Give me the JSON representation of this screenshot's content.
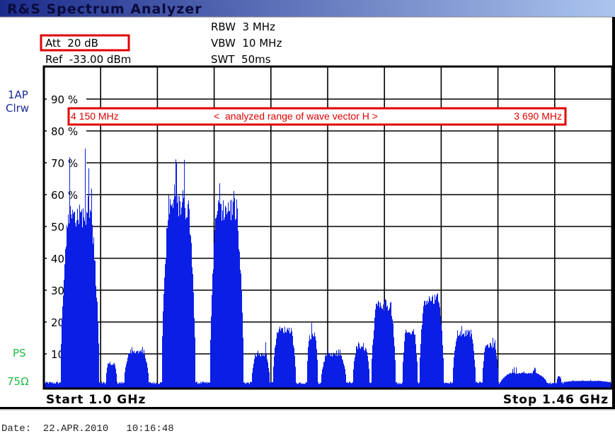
{
  "window": {
    "title": "R&S Spectrum Analyzer"
  },
  "settings": {
    "att": "Att  20 dB",
    "ref": "Ref  -33.00 dBm",
    "rbw": "RBW  3 MHz",
    "vbw": "VBW  10 MHz",
    "swt": "SWT  50ms"
  },
  "side_labels": {
    "trace": "1AP",
    "mode": "Clrw",
    "ps": "PS",
    "impedance": "75Ω"
  },
  "annotation": {
    "left": "4 150 MHz",
    "center": "<  analyzed range of wave vector H >",
    "right": "3 690 MHz"
  },
  "footer": {
    "date": "Date:  22.APR.2010   10:16:48"
  },
  "colors": {
    "trace": "#0a1ee6",
    "annotation": "#e00000",
    "title_bar_start": "#1c2c8c",
    "title_bar_end": "#aac6ee",
    "side_blue": "#1a2a9a",
    "side_green": "#22bb44"
  },
  "chart_data": {
    "type": "area",
    "start_label": "Start 1.0 GHz",
    "stop_label": "Stop 1.46 GHz",
    "xlim": [
      1.0,
      1.46
    ],
    "x_unit": "GHz",
    "ylim": [
      0,
      100
    ],
    "y_unit": "%",
    "grid": true,
    "x_divisions": 10,
    "y_ticks": [
      {
        "value": 90,
        "label": "90 %"
      },
      {
        "value": 80,
        "label": "80 %"
      },
      {
        "value": 70,
        "label": "70 %"
      },
      {
        "value": 60,
        "label": "60 %"
      },
      {
        "value": 50,
        "label": "50 %"
      },
      {
        "value": 40,
        "label": "40 %"
      },
      {
        "value": 30,
        "label": "30 %"
      },
      {
        "value": 20,
        "label": "20 %"
      },
      {
        "value": 10,
        "label": "10 %"
      }
    ],
    "noise_floor": 1,
    "channels": [
      {
        "start": 1.013,
        "stop": 1.045,
        "level": 55,
        "peak": 80
      },
      {
        "start": 1.05,
        "stop": 1.059,
        "level": 7,
        "peak": 8
      },
      {
        "start": 1.065,
        "stop": 1.085,
        "level": 11,
        "peak": 13
      },
      {
        "start": 1.095,
        "stop": 1.123,
        "level": 58,
        "peak": 72
      },
      {
        "start": 1.134,
        "stop": 1.162,
        "level": 57,
        "peak": 72
      },
      {
        "start": 1.168,
        "stop": 1.183,
        "level": 10,
        "peak": 14
      },
      {
        "start": 1.185,
        "stop": 1.204,
        "level": 18,
        "peak": 22
      },
      {
        "start": 1.213,
        "stop": 1.222,
        "level": 16,
        "peak": 20
      },
      {
        "start": 1.224,
        "stop": 1.245,
        "level": 10,
        "peak": 12
      },
      {
        "start": 1.25,
        "stop": 1.264,
        "level": 12,
        "peak": 14
      },
      {
        "start": 1.265,
        "stop": 1.285,
        "level": 26,
        "peak": 30
      },
      {
        "start": 1.29,
        "stop": 1.303,
        "level": 17,
        "peak": 21
      },
      {
        "start": 1.304,
        "stop": 1.324,
        "level": 28,
        "peak": 35
      },
      {
        "start": 1.331,
        "stop": 1.35,
        "level": 17,
        "peak": 20
      },
      {
        "start": 1.355,
        "stop": 1.368,
        "level": 13,
        "peak": 16
      },
      {
        "start": 1.37,
        "stop": 1.407,
        "level": 4,
        "peak": 6
      },
      {
        "start": 1.415,
        "stop": 1.419,
        "level": 3,
        "peak": 5
      },
      {
        "start": 1.421,
        "stop": 1.458,
        "level": 1.5,
        "peak": 2
      }
    ]
  }
}
